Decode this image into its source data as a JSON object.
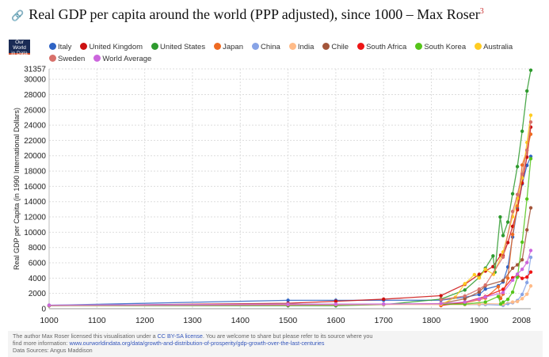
{
  "header": {
    "title": "Real GDP per capita around the world (PPP adjusted), since 1000 – Max Roser",
    "footnote": "3",
    "logo": "Our World in Data"
  },
  "chart_data": {
    "type": "line",
    "title": "Real GDP per capita around the world (PPP adjusted), since 1000",
    "ylabel": "Real GDP per Capita (in 1990 International Dollars)",
    "xlabel": "",
    "xlim": [
      1000,
      2008
    ],
    "ylim": [
      0,
      31357
    ],
    "xticks": [
      1000,
      1100,
      1200,
      1300,
      1400,
      1500,
      1600,
      1700,
      1800,
      1900,
      2008
    ],
    "yticks": [
      0,
      2000,
      4000,
      6000,
      8000,
      10000,
      12000,
      14000,
      16000,
      18000,
      20000,
      22000,
      24000,
      26000,
      28000,
      30000,
      31357
    ],
    "grid": true,
    "legend_position": "top",
    "series": [
      {
        "name": "Italy",
        "color": "#2e63c4",
        "x": [
          1000,
          1500,
          1600,
          1700,
          1820,
          1870,
          1900,
          1913,
          1940,
          1950,
          1960,
          1970,
          1980,
          1990,
          2000,
          2008
        ],
        "y": [
          450,
          1100,
          1100,
          1100,
          1117,
          1499,
          1855,
          2564,
          3000,
          3502,
          5456,
          9367,
          13149,
          16313,
          18740,
          19909
        ]
      },
      {
        "name": "United Kingdom",
        "color": "#cc1111",
        "x": [
          1000,
          1500,
          1600,
          1700,
          1820,
          1870,
          1900,
          1913,
          1929,
          1945,
          1950,
          1960,
          1970,
          1980,
          1990,
          2000,
          2008
        ],
        "y": [
          400,
          714,
          974,
          1250,
          1706,
          3190,
          4492,
          4921,
          5503,
          7000,
          6939,
          8645,
          10767,
          12931,
          16430,
          19817,
          23742
        ]
      },
      {
        "name": "United States",
        "color": "#2e9a2e",
        "x": [
          1000,
          1500,
          1600,
          1700,
          1820,
          1870,
          1900,
          1913,
          1929,
          1933,
          1944,
          1950,
          1960,
          1970,
          1980,
          1990,
          2000,
          2008
        ],
        "y": [
          400,
          400,
          400,
          527,
          1257,
          2445,
          4091,
          5301,
          6899,
          4777,
          12000,
          9561,
          11328,
          15030,
          18577,
          23201,
          28467,
          31178
        ]
      },
      {
        "name": "Japan",
        "color": "#ee6a22",
        "x": [
          1000,
          1500,
          1600,
          1700,
          1820,
          1870,
          1900,
          1913,
          1940,
          1945,
          1950,
          1960,
          1970,
          1980,
          1990,
          2000,
          2008
        ],
        "y": [
          425,
          500,
          520,
          570,
          669,
          737,
          1180,
          1387,
          2874,
          1346,
          1921,
          3986,
          9714,
          13428,
          18789,
          20738,
          22816
        ]
      },
      {
        "name": "China",
        "color": "#87a3e6",
        "x": [
          1000,
          1500,
          1600,
          1700,
          1820,
          1870,
          1900,
          1913,
          1950,
          1960,
          1970,
          1980,
          1990,
          2000,
          2008
        ],
        "y": [
          466,
          600,
          600,
          600,
          600,
          530,
          545,
          552,
          448,
          662,
          778,
          1061,
          1871,
          3421,
          6725
        ]
      },
      {
        "name": "India",
        "color": "#ffbb88",
        "x": [
          1000,
          1500,
          1600,
          1700,
          1820,
          1870,
          1900,
          1913,
          1950,
          1970,
          1980,
          1990,
          2000,
          2008
        ],
        "y": [
          450,
          550,
          550,
          550,
          533,
          533,
          599,
          673,
          619,
          868,
          938,
          1309,
          1892,
          2975
        ]
      },
      {
        "name": "Chile",
        "color": "#a3553a",
        "x": [
          1820,
          1870,
          1900,
          1913,
          1950,
          1970,
          1980,
          1990,
          2000,
          2008
        ],
        "y": [
          694,
          1290,
          2194,
          3000,
          3670,
          5293,
          5738,
          6402,
          10309,
          13185
        ]
      },
      {
        "name": "South Africa",
        "color": "#ee1515",
        "x": [
          1820,
          1870,
          1913,
          1950,
          1970,
          1980,
          1990,
          2000,
          2008
        ],
        "y": [
          415,
          858,
          1602,
          2535,
          4045,
          4390,
          3966,
          4139,
          4793
        ]
      },
      {
        "name": "South Korea",
        "color": "#55c41a",
        "x": [
          1820,
          1870,
          1913,
          1940,
          1945,
          1950,
          1960,
          1970,
          1980,
          1990,
          2000,
          2008
        ],
        "y": [
          600,
          604,
          869,
          1600,
          616,
          854,
          1226,
          2167,
          4114,
          8704,
          14343,
          19614
        ]
      },
      {
        "name": "Australia",
        "color": "#ffcc22",
        "x": [
          1820,
          1850,
          1870,
          1890,
          1900,
          1913,
          1930,
          1950,
          1970,
          1980,
          1990,
          2000,
          2008
        ],
        "y": [
          518,
          1500,
          3273,
          4458,
          4013,
          5157,
          4500,
          7412,
          12024,
          14412,
          17106,
          21732,
          25301
        ]
      },
      {
        "name": "Sweden",
        "color": "#d8706a",
        "x": [
          1820,
          1870,
          1900,
          1913,
          1950,
          1970,
          1980,
          1990,
          2000,
          2008
        ],
        "y": [
          1198,
          1662,
          2561,
          3096,
          6739,
          12716,
          14937,
          17609,
          20710,
          24409
        ]
      },
      {
        "name": "World Average",
        "color": "#cc66dd",
        "x": [
          1000,
          1500,
          1600,
          1700,
          1820,
          1870,
          1900,
          1913,
          1950,
          1970,
          1980,
          1990,
          2000,
          2008
        ],
        "y": [
          453,
          566,
          595,
          615,
          666,
          870,
          1262,
          1526,
          2111,
          3729,
          4520,
          5150,
          6038,
          7614
        ]
      }
    ]
  },
  "footer": {
    "line1a": "The author Max Roser licensed this visualisation under a ",
    "license": "CC BY-SA license",
    "line1b": ". You are welcome to share but please refer to its source where you",
    "line2a": "find more information: ",
    "url": "www.ourworldindata.org/data/growth-and-distribution-of-prosperity/gdp-growth-over-the-last-centuries",
    "line3": "Data Sources: Angus Maddison"
  }
}
